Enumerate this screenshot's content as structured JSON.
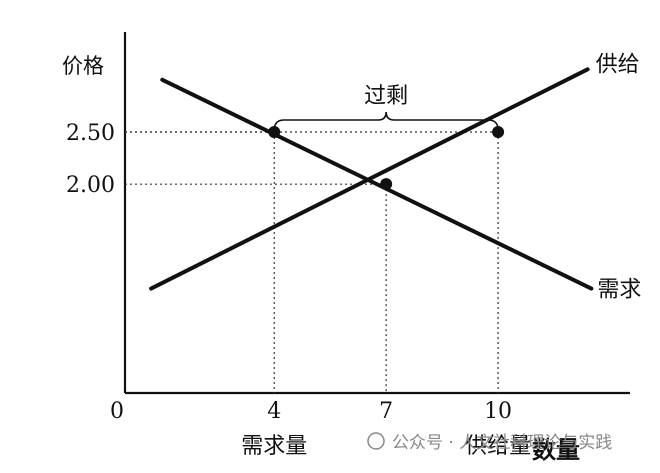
{
  "chart_data": {
    "type": "line",
    "ylabel": "价格",
    "xlim": [
      0,
      13
    ],
    "ylim": [
      0,
      3.4
    ],
    "x_ticks": [
      {
        "value": 0,
        "label": "0"
      },
      {
        "value": 4,
        "label": "4"
      },
      {
        "value": 7,
        "label": "7"
      },
      {
        "value": 10,
        "label": "10"
      }
    ],
    "y_ticks": [
      {
        "value": 2.0,
        "label": "2.00"
      },
      {
        "value": 2.5,
        "label": "2.50"
      }
    ],
    "x_tick_sublabels": [
      {
        "value": 4,
        "label": "需求量"
      },
      {
        "value": 10,
        "label": "供给量"
      }
    ],
    "x_axis_end_label": "数量",
    "series": [
      {
        "name": "供给",
        "points": [
          [
            0.7,
            1.0
          ],
          [
            12.4,
            3.1
          ]
        ]
      },
      {
        "name": "需求",
        "points": [
          [
            1.0,
            3.0
          ],
          [
            12.5,
            1.0
          ]
        ]
      }
    ],
    "key_points": [
      {
        "x": 4,
        "y": 2.5
      },
      {
        "x": 10,
        "y": 2.5
      },
      {
        "x": 7,
        "y": 2.0
      }
    ],
    "bracket": {
      "from": 4,
      "to": 10,
      "label": "过剩"
    },
    "watermark": "公众号 · 人文社科理论与实践",
    "colors": {
      "ink": "#111111",
      "guide": "#333333",
      "watermark": "#888888"
    }
  }
}
